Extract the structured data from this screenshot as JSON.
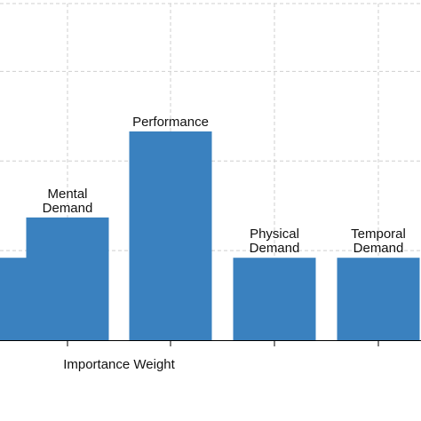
{
  "chart_data": {
    "type": "bar",
    "xlabel": "Importance Weight",
    "ylabel": "",
    "ylim": [
      0,
      3.5
    ],
    "grid": true,
    "bar_color": "#3a81bf",
    "categories": [
      {
        "label": "",
        "lines": []
      },
      {
        "label": "Mental Demand",
        "lines": [
          "Mental",
          "Demand"
        ]
      },
      {
        "label": "Performance",
        "lines": [
          "Performance"
        ]
      },
      {
        "label": "Physical Demand",
        "lines": [
          "Physical",
          "Demand"
        ]
      },
      {
        "label": "Temporal Demand",
        "lines": [
          "Temporal",
          "Demand"
        ]
      }
    ],
    "values": [
      0.92,
      1.37,
      2.33,
      0.92,
      0.92
    ]
  }
}
